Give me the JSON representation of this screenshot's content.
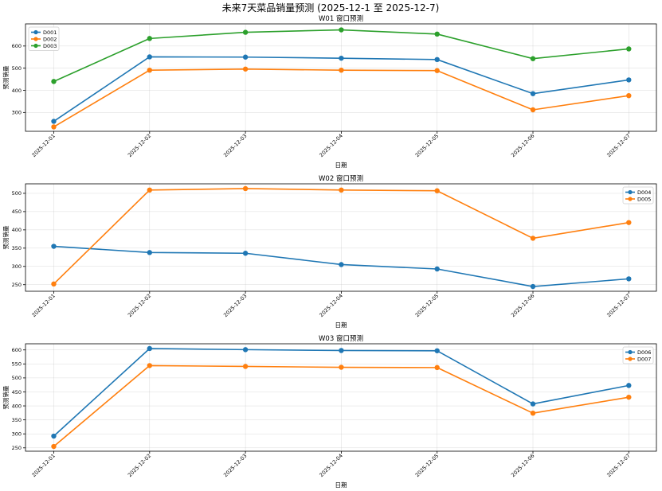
{
  "chart_data": {
    "type": "line",
    "title": "未来7天菜品销量预测 (2025-12-1 至 2025-12-7)",
    "subplots": [
      {
        "title": "W01 窗口预测",
        "xlabel": "日期",
        "ylabel": "预测销量",
        "categories": [
          "2025-12-01",
          "2025-12-02",
          "2025-12-03",
          "2025-12-04",
          "2025-12-05",
          "2025-12-06",
          "2025-12-07"
        ],
        "ylim": [
          215,
          700
        ],
        "yticks": [
          300,
          400,
          500,
          600
        ],
        "legend": "upper-left",
        "series": [
          {
            "name": "D001",
            "color": "#1f77b4",
            "values": [
              260,
              551,
              550,
              545,
              539,
              385,
              447
            ]
          },
          {
            "name": "D002",
            "color": "#ff7f0e",
            "values": [
              235,
              491,
              496,
              491,
              489,
              312,
              376
            ]
          },
          {
            "name": "D003",
            "color": "#2ca02c",
            "values": [
              440,
              634,
              662,
              673,
              654,
              543,
              587
            ]
          }
        ]
      },
      {
        "title": "W02 窗口预测",
        "xlabel": "日期",
        "ylabel": "预测销量",
        "categories": [
          "2025-12-01",
          "2025-12-02",
          "2025-12-03",
          "2025-12-04",
          "2025-12-05",
          "2025-12-06",
          "2025-12-07"
        ],
        "ylim": [
          232,
          526
        ],
        "yticks": [
          250,
          300,
          350,
          400,
          450,
          500
        ],
        "legend": "upper-right",
        "series": [
          {
            "name": "D004",
            "color": "#1f77b4",
            "values": [
              355,
              338,
              336,
              305,
              293,
              245,
              266
            ]
          },
          {
            "name": "D005",
            "color": "#ff7f0e",
            "values": [
              252,
              509,
              513,
              509,
              507,
              377,
              420
            ]
          }
        ]
      },
      {
        "title": "W03 窗口预测",
        "xlabel": "日期",
        "ylabel": "预测销量",
        "categories": [
          "2025-12-01",
          "2025-12-02",
          "2025-12-03",
          "2025-12-04",
          "2025-12-05",
          "2025-12-06",
          "2025-12-07"
        ],
        "ylim": [
          238,
          622
        ],
        "yticks": [
          250,
          300,
          350,
          400,
          450,
          500,
          550,
          600
        ],
        "legend": "upper-right",
        "series": [
          {
            "name": "D006",
            "color": "#1f77b4",
            "values": [
              292,
              605,
              601,
              598,
              597,
              407,
              473
            ]
          },
          {
            "name": "D007",
            "color": "#ff7f0e",
            "values": [
              255,
              544,
              541,
              538,
              537,
              374,
              431
            ]
          }
        ]
      }
    ]
  }
}
